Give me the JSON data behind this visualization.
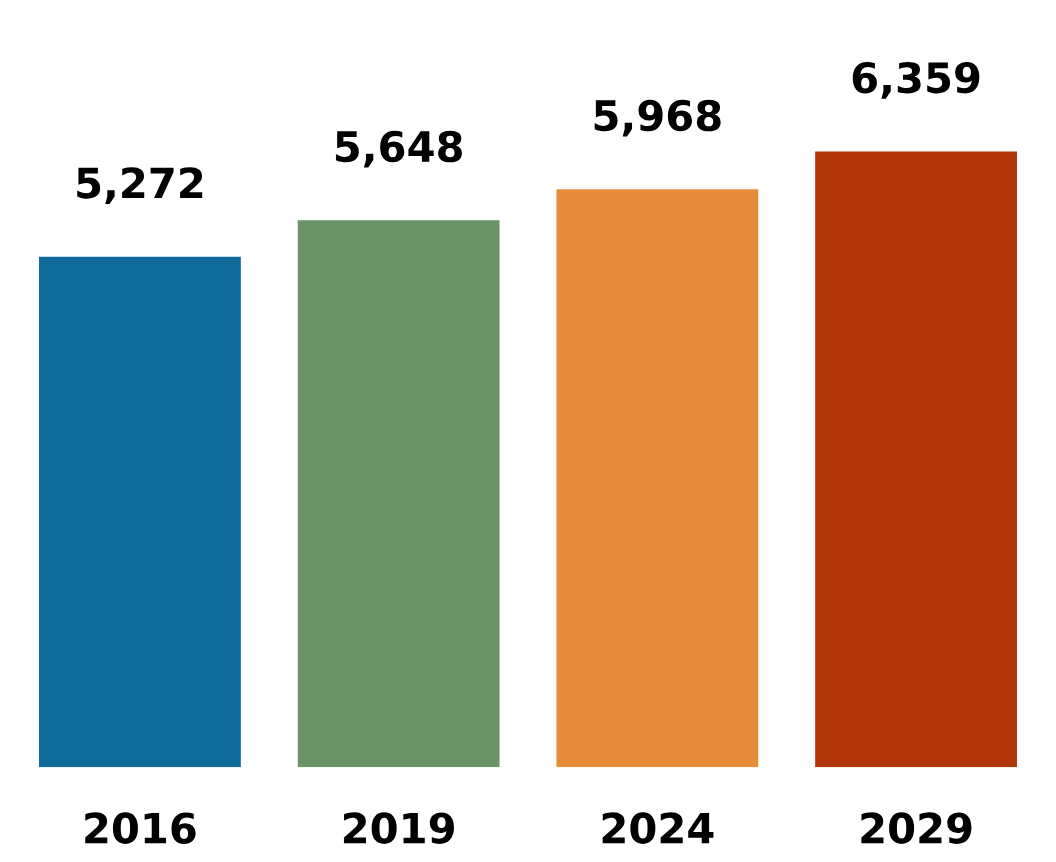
{
  "chart_data": {
    "type": "bar",
    "categories": [
      "2016",
      "2019",
      "2024",
      "2029"
    ],
    "values": [
      5272,
      5648,
      5968,
      6359
    ],
    "colors": [
      "#0f6a9a",
      "#6a9466",
      "#e68c3a",
      "#b0360a"
    ],
    "value_labels": [
      "5,272",
      "5,648",
      "5,968",
      "6,359"
    ],
    "grid": false,
    "legend": false
  }
}
